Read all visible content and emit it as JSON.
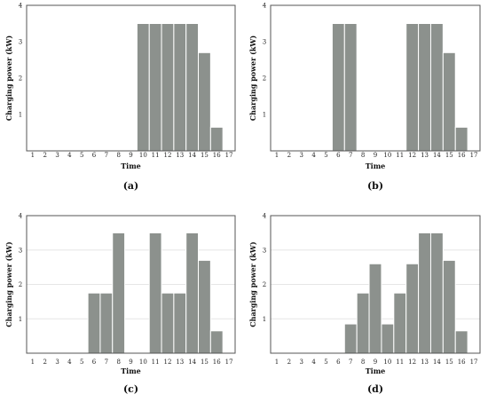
{
  "chart_data": [
    {
      "type": "bar",
      "panel_label": "(a)",
      "xlabel": "Time",
      "ylabel": "Charging power (kW)",
      "categories": [
        "1",
        "2",
        "3",
        "4",
        "5",
        "6",
        "7",
        "8",
        "9",
        "10",
        "11",
        "12",
        "13",
        "14",
        "15",
        "16",
        "17"
      ],
      "values": [
        0,
        0,
        0,
        0,
        0,
        0,
        0,
        0,
        0,
        3.5,
        3.5,
        3.5,
        3.5,
        3.5,
        2.7,
        0.65,
        0
      ],
      "ylim": [
        0,
        4
      ],
      "yticks": [
        "1",
        "2",
        "3",
        "4"
      ],
      "grid": false
    },
    {
      "type": "bar",
      "panel_label": "(b)",
      "xlabel": "Time",
      "ylabel": "Charging power (kW)",
      "categories": [
        "1",
        "2",
        "3",
        "4",
        "5",
        "6",
        "7",
        "8",
        "9",
        "10",
        "11",
        "12",
        "13",
        "14",
        "15",
        "16",
        "17"
      ],
      "values": [
        0,
        0,
        0,
        0,
        0,
        3.5,
        3.5,
        0,
        0,
        0,
        0,
        3.5,
        3.5,
        3.5,
        2.7,
        0.65,
        0
      ],
      "ylim": [
        0,
        4
      ],
      "yticks": [
        "1",
        "2",
        "3",
        "4"
      ],
      "grid": false
    },
    {
      "type": "bar",
      "panel_label": "(c)",
      "xlabel": "Time",
      "ylabel": "Charging power (kW)",
      "categories": [
        "1",
        "2",
        "3",
        "4",
        "5",
        "6",
        "7",
        "8",
        "9",
        "10",
        "11",
        "12",
        "13",
        "14",
        "15",
        "16",
        "17"
      ],
      "values": [
        0,
        0,
        0,
        0,
        0,
        1.75,
        1.75,
        3.5,
        0,
        0,
        3.5,
        1.75,
        1.75,
        3.5,
        2.7,
        0.65,
        0
      ],
      "ylim": [
        0,
        4
      ],
      "yticks": [
        "1",
        "2",
        "3",
        "4"
      ],
      "grid": true
    },
    {
      "type": "bar",
      "panel_label": "(d)",
      "xlabel": "Time",
      "ylabel": "Charging power (kW)",
      "categories": [
        "1",
        "2",
        "3",
        "4",
        "5",
        "6",
        "7",
        "8",
        "9",
        "10",
        "11",
        "12",
        "13",
        "14",
        "15",
        "16",
        "17"
      ],
      "values": [
        0,
        0,
        0,
        0,
        0,
        0,
        0.85,
        1.75,
        2.6,
        0.85,
        1.75,
        2.6,
        3.5,
        3.5,
        2.7,
        0.65,
        0
      ],
      "ylim": [
        0,
        4
      ],
      "yticks": [
        "1",
        "2",
        "3",
        "4"
      ],
      "grid": true
    }
  ]
}
